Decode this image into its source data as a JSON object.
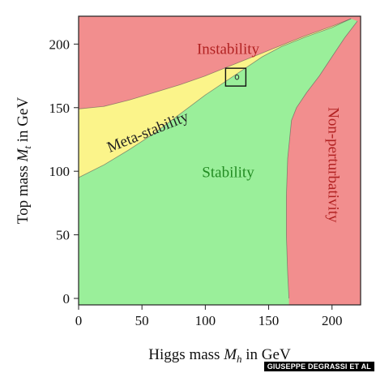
{
  "chart_data": {
    "type": "area",
    "title": "",
    "xlabel": {
      "prefix": "Higgs mass ",
      "symbol": "M",
      "sub": "h",
      "suffix": " in GeV"
    },
    "ylabel": {
      "prefix": "Top mass ",
      "symbol": "M",
      "sub": "t",
      "suffix": " in GeV"
    },
    "xlim": [
      0,
      220
    ],
    "ylim": [
      0,
      220
    ],
    "xticks": [
      0,
      50,
      100,
      150,
      200
    ],
    "yticks": [
      0,
      50,
      100,
      150,
      200
    ],
    "colors": {
      "instability": "#f28e8e",
      "meta_stability": "#fbf48a",
      "stability": "#9aef9a",
      "non_perturbativity": "#f28e8e",
      "boundary": "#555555"
    },
    "regions": [
      {
        "key": "instability",
        "label": "Instability",
        "label_at": [
          118,
          195
        ],
        "label_color": "#b22222"
      },
      {
        "key": "meta_stability",
        "label": "Meta-stability",
        "label_at": [
          55,
          130
        ],
        "label_rotation": -22,
        "label_color": "#222222"
      },
      {
        "key": "stability",
        "label": "Stability",
        "label_at": [
          118,
          98
        ],
        "label_color": "#228b22"
      },
      {
        "key": "non_perturbativity",
        "label": "Non-perturbativity",
        "label_at": [
          200,
          105
        ],
        "label_rotation": 90,
        "label_color": "#b22222"
      }
    ],
    "boundaries": {
      "instability_upper": [
        [
          0,
          149
        ],
        [
          20,
          151
        ],
        [
          40,
          156
        ],
        [
          60,
          162
        ],
        [
          80,
          168
        ],
        [
          100,
          175
        ],
        [
          120,
          183
        ],
        [
          140,
          191
        ],
        [
          160,
          199
        ],
        [
          180,
          207
        ],
        [
          200,
          214
        ],
        [
          215,
          220
        ]
      ],
      "stability_lower": [
        [
          0,
          95
        ],
        [
          20,
          105
        ],
        [
          40,
          117
        ],
        [
          60,
          130
        ],
        [
          80,
          145
        ],
        [
          100,
          160
        ],
        [
          115,
          170
        ],
        [
          130,
          180
        ],
        [
          145,
          190
        ],
        [
          160,
          198
        ],
        [
          180,
          206
        ],
        [
          200,
          213
        ],
        [
          215,
          220
        ]
      ],
      "nonpert_edge": [
        [
          166,
          0
        ],
        [
          165,
          20
        ],
        [
          164,
          50
        ],
        [
          164,
          80
        ],
        [
          165,
          110
        ],
        [
          168,
          140
        ],
        [
          172,
          150
        ],
        [
          180,
          162
        ],
        [
          190,
          175
        ],
        [
          200,
          190
        ],
        [
          210,
          205
        ],
        [
          220,
          218
        ]
      ]
    },
    "highlight_box": {
      "x": [
        116,
        132
      ],
      "y": [
        167,
        181
      ],
      "marker": [
        125,
        174
      ]
    }
  },
  "credit": "GIUSEPPE DEGRASSI ET AL"
}
